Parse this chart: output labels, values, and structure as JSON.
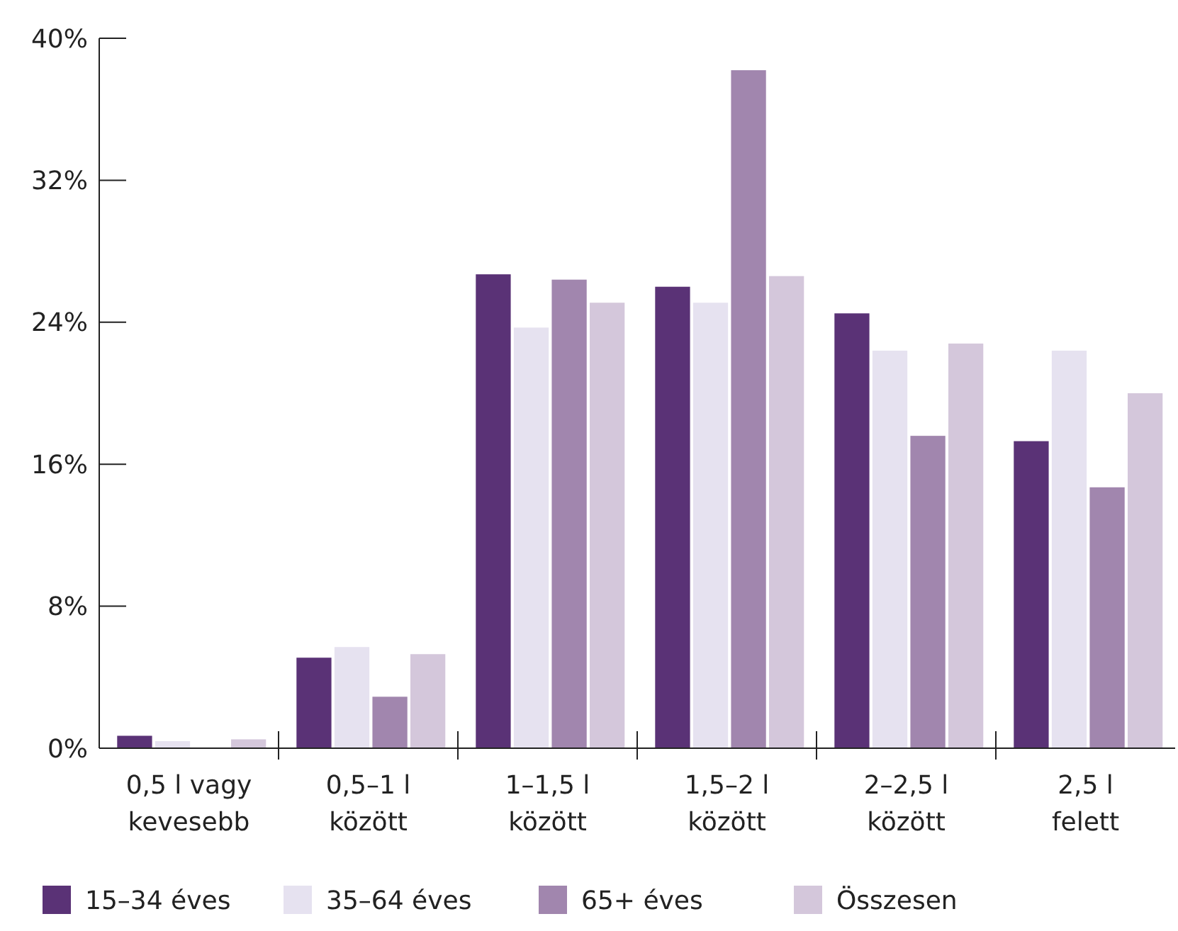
{
  "chart_data": {
    "type": "bar",
    "categories": [
      "0,5 l vagy kevesebb",
      "0,5–1 l között",
      "1–1,5 l között",
      "1,5–2 l között",
      "2–2,5 l között",
      "2,5 l felett"
    ],
    "series": [
      {
        "name": "15–34 éves",
        "color": "#5a3276",
        "values": [
          0.7,
          5.1,
          26.7,
          26.0,
          24.5,
          17.3
        ]
      },
      {
        "name": "35–64 éves",
        "color": "#e6e2f0",
        "values": [
          0.4,
          5.7,
          23.7,
          25.1,
          22.4,
          22.4
        ]
      },
      {
        "name": "65+ éves",
        "color": "#a186ae",
        "values": [
          0,
          2.9,
          26.4,
          38.2,
          17.6,
          14.7
        ]
      },
      {
        "name": "Összesen",
        "color": "#d4c7db",
        "values": [
          0.5,
          5.3,
          25.1,
          26.6,
          22.8,
          20.0
        ]
      }
    ],
    "ylim": [
      0,
      40
    ],
    "yticks": [
      {
        "value": 0,
        "label": "0%"
      },
      {
        "value": 8,
        "label": "8%"
      },
      {
        "value": 16,
        "label": "16%"
      },
      {
        "value": 24,
        "label": "24%"
      },
      {
        "value": 32,
        "label": "32%"
      },
      {
        "value": 40,
        "label": "40%"
      }
    ],
    "grid": false,
    "legend": "bottom"
  }
}
